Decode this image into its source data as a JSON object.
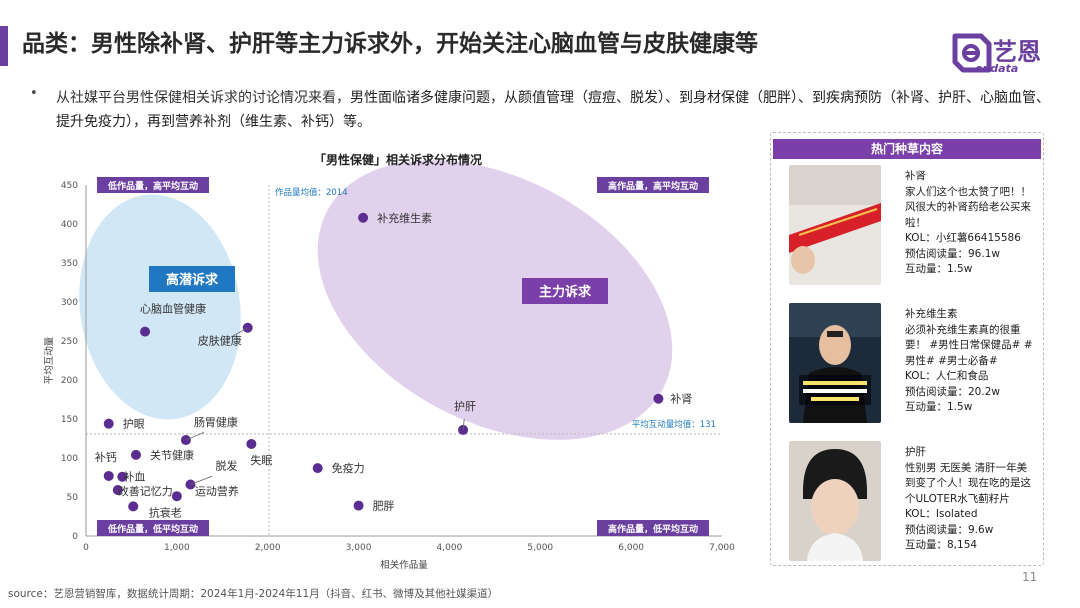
{
  "title": "品类：男性除补肾、护肝等主力诉求外，开始关注心脑血管与皮肤健康等",
  "logo": {
    "text": "艺恩",
    "sub": "endata"
  },
  "bullet_symbol": "•",
  "intro": {
    "part1": "从社媒平台男性保健相关诉求的讨论情况来看，",
    "part2": "男性面临诸多健康问题，从颜值管理（痘痘、脱发）、到身材保健（肥胖）、到疾病预防（补肾、护肝、心脑血管、提升免疫力），再到营养补剂（维生素、补钙）等。"
  },
  "chart_data": {
    "type": "scatter",
    "title": "「男性保健」相关诉求分布情况",
    "xlabel": "相关作品量",
    "ylabel": "平均互动量",
    "xlim": [
      0,
      7000
    ],
    "ylim": [
      0,
      450
    ],
    "x_ticks": [
      "0",
      "1,000",
      "2,000",
      "3,000",
      "4,000",
      "5,000",
      "6,000",
      "7,000"
    ],
    "y_ticks": [
      "0",
      "50",
      "100",
      "150",
      "200",
      "250",
      "300",
      "350",
      "400",
      "450"
    ],
    "grid": false,
    "points": [
      {
        "label": "补充维生素",
        "x": 3050,
        "y": 408
      },
      {
        "label": "补肾",
        "x": 6300,
        "y": 176
      },
      {
        "label": "护肝",
        "x": 4150,
        "y": 136
      },
      {
        "label": "心脑血管健康",
        "x": 650,
        "y": 262
      },
      {
        "label": "皮肤健康",
        "x": 1780,
        "y": 267
      },
      {
        "label": "护眼",
        "x": 250,
        "y": 144
      },
      {
        "label": "肠胃健康",
        "x": 1100,
        "y": 123
      },
      {
        "label": "失眠",
        "x": 1820,
        "y": 118
      },
      {
        "label": "关节健康",
        "x": 550,
        "y": 104
      },
      {
        "label": "免疫力",
        "x": 2550,
        "y": 87
      },
      {
        "label": "补钙",
        "x": 250,
        "y": 77
      },
      {
        "label": "补血",
        "x": 400,
        "y": 76
      },
      {
        "label": "脱发",
        "x": 1150,
        "y": 66
      },
      {
        "label": "改善记忆力",
        "x": 350,
        "y": 59
      },
      {
        "label": "运动营养",
        "x": 1000,
        "y": 51
      },
      {
        "label": "肥胖",
        "x": 3000,
        "y": 39
      },
      {
        "label": "抗衰老",
        "x": 520,
        "y": 38
      }
    ],
    "reference_lines": [
      {
        "axis": "x",
        "value": 2014,
        "label": "作品量均值：2014"
      },
      {
        "axis": "y",
        "value": 131,
        "label": "平均互动量均值：131"
      }
    ],
    "quadrant_labels": {
      "top_left": "低作品量，高平均互动",
      "top_right": "高作品量，高平均互动",
      "bottom_left": "低作品量，低平均互动",
      "bottom_right": "高作品量，低平均互动"
    },
    "cluster_labels": {
      "potential": "高潜诉求",
      "main": "主力诉求"
    },
    "colors": {
      "point": "#5b2d91",
      "quadrant_box": "#6b3fa0",
      "potential_fill": "#c9e3f5",
      "potential_label_bg": "#1f78c1",
      "main_fill": "#ddc9ea",
      "main_label_bg": "#7a3fa8",
      "reference_text": "#1f78c1"
    }
  },
  "side_panel": {
    "header": "热门种草内容",
    "cards": [
      {
        "lines": [
          "补肾",
          "家人们这个也太赞了吧！！风很大的补肾药给老公买来啦！",
          "KOL：小红薯66415586",
          "预估阅读量：96.1w",
          "互动量：1.5w"
        ]
      },
      {
        "lines": [
          "补充维生素",
          "必须补充维生素真的很重要！ #男性日常保健品# #男性# #男士必备#",
          "KOL：人仁和食品",
          "预估阅读量：20.2w",
          "互动量：1.5w"
        ]
      },
      {
        "lines": [
          "护肝",
          "性别男 无医美 清肝一年美到变了个人！现在吃的是这个ULOTER水飞蓟籽片",
          "KOL：Isolated",
          "预估阅读量：9.6w",
          "互动量：8,154"
        ]
      }
    ]
  },
  "source": "source：艺恩营销智库，数据统计周期：2024年1月-2024年11月（抖音、红书、微博及其他社媒渠道）",
  "page_number": "11"
}
